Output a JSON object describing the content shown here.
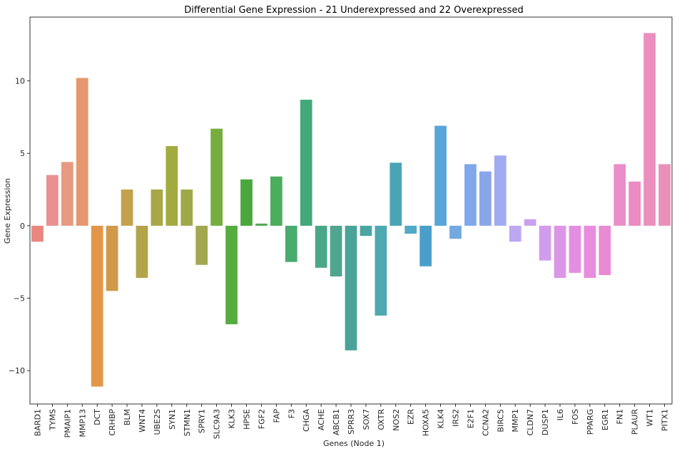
{
  "chart_data": {
    "type": "bar",
    "title": "Differential Gene Expression - 21 Underexpressed and 22 Overexpressed",
    "xlabel": "Genes (Node 1)",
    "ylabel": "Gene Expression",
    "ylim": [
      -12.3,
      14.4
    ],
    "yticks": [
      -10,
      -5,
      0,
      5,
      10
    ],
    "grid": false,
    "categories": [
      "BARD1",
      "TYMS",
      "PMAIP1",
      "MMP13",
      "DCT",
      "CRHBP",
      "BLM",
      "WNT4",
      "UBE2S",
      "SYN1",
      "STMN1",
      "SPRY1",
      "SLC9A3",
      "KLK3",
      "HPSE",
      "FGF2",
      "FAP",
      "F3",
      "CHGA",
      "ACHE",
      "ABCB1",
      "SPRR3",
      "SOX7",
      "OXTR",
      "NOS2",
      "EZR",
      "HOXA5",
      "KLK4",
      "IRS2",
      "E2F1",
      "CCNA2",
      "BIRC5",
      "MMP1",
      "CLDN7",
      "DUSP1",
      "IL6",
      "FOS",
      "PPARG",
      "EGR1",
      "FN1",
      "PLAUR",
      "WT1",
      "PITX1"
    ],
    "values": [
      -1.1,
      3.5,
      4.4,
      10.2,
      -11.1,
      -4.5,
      2.5,
      -3.6,
      2.5,
      5.5,
      2.5,
      -2.7,
      6.7,
      -6.8,
      3.2,
      0.15,
      3.4,
      -2.5,
      8.7,
      -2.9,
      -3.5,
      -8.6,
      -0.7,
      -6.2,
      4.35,
      -0.55,
      -2.8,
      6.9,
      -0.9,
      4.25,
      3.75,
      4.85,
      -1.1,
      0.45,
      -2.4,
      -3.6,
      -3.25,
      -3.6,
      -3.4,
      4.25,
      3.05,
      13.3,
      4.25
    ],
    "colors": [
      "#e8867f",
      "#ea9090",
      "#e89981",
      "#e6976d",
      "#e29647",
      "#d19a4a",
      "#c3a24c",
      "#b3a44a",
      "#a8a846",
      "#a2ab40",
      "#9fa949",
      "#a1a84f",
      "#75ae3f",
      "#56ad3f",
      "#4aa73d",
      "#4eaa51",
      "#4cad5c",
      "#4aab6f",
      "#43a979",
      "#4aa787",
      "#4fa58f",
      "#49a399",
      "#4aa6a4",
      "#4ea9b0",
      "#49a4b6",
      "#52a8c7",
      "#4a9fca",
      "#58a6d9",
      "#72a9e1",
      "#7fa7e9",
      "#8aa6ea",
      "#a1abf1",
      "#bda7f1",
      "#c8a1ef",
      "#d19ceb",
      "#dc96e8",
      "#e38de3",
      "#e88cde",
      "#e98ad2",
      "#ea8dc9",
      "#ec8ac3",
      "#eb8fbf",
      "#ea8fb8"
    ]
  }
}
